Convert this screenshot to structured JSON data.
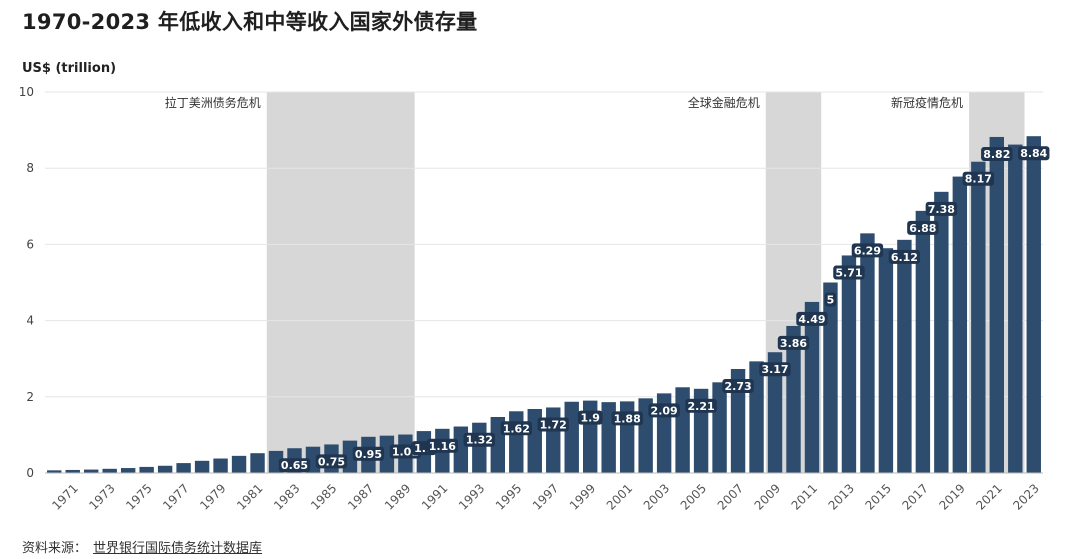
{
  "title": "1970-2023 年低收入和中等收入国家外债存量",
  "unit_label": "US$ (trillion)",
  "source": {
    "prefix": "资料来源：",
    "link_text": "世界银行国际债务统计数据库"
  },
  "colors": {
    "bar": "#2e4d6e",
    "band": "#d7d7d7",
    "label_bg": "#1f3550",
    "grid": "#e6e6e6"
  },
  "chart_data": {
    "type": "bar",
    "title": "1970-2023 年低收入和中等收入国家外债存量",
    "ylabel": "US$ (trillion)",
    "ylim": [
      0,
      10
    ],
    "yticks": [
      0,
      2,
      4,
      6,
      8,
      10
    ],
    "grid": true,
    "categories": [
      1970,
      1971,
      1972,
      1973,
      1974,
      1975,
      1976,
      1977,
      1978,
      1979,
      1980,
      1981,
      1982,
      1983,
      1984,
      1985,
      1986,
      1987,
      1988,
      1989,
      1990,
      1991,
      1992,
      1993,
      1994,
      1995,
      1996,
      1997,
      1998,
      1999,
      2000,
      2001,
      2002,
      2003,
      2004,
      2005,
      2006,
      2007,
      2008,
      2009,
      2010,
      2011,
      2012,
      2013,
      2014,
      2015,
      2016,
      2017,
      2018,
      2019,
      2020,
      2021,
      2022,
      2023
    ],
    "xtick_labels": [
      1971,
      1973,
      1975,
      1977,
      1979,
      1981,
      1983,
      1985,
      1987,
      1989,
      1991,
      1993,
      1995,
      1997,
      1999,
      2001,
      2003,
      2005,
      2007,
      2009,
      2011,
      2013,
      2015,
      2017,
      2019,
      2021,
      2023
    ],
    "values": [
      0.07,
      0.08,
      0.09,
      0.11,
      0.13,
      0.16,
      0.19,
      0.26,
      0.32,
      0.38,
      0.45,
      0.52,
      0.58,
      0.65,
      0.69,
      0.75,
      0.85,
      0.95,
      0.98,
      1.01,
      1.1,
      1.16,
      1.22,
      1.32,
      1.47,
      1.62,
      1.68,
      1.72,
      1.87,
      1.9,
      1.86,
      1.88,
      1.96,
      2.09,
      2.25,
      2.21,
      2.38,
      2.73,
      2.93,
      3.17,
      3.86,
      4.49,
      5.0,
      5.71,
      6.29,
      5.9,
      6.12,
      6.88,
      7.38,
      7.78,
      8.17,
      8.82,
      8.62,
      8.84
    ],
    "data_labels": [
      {
        "year": 1983,
        "text": "0.65"
      },
      {
        "year": 1985,
        "text": "0.75"
      },
      {
        "year": 1987,
        "text": "0.95"
      },
      {
        "year": 1989,
        "text": "1.01"
      },
      {
        "year": 1990,
        "text": "1.1"
      },
      {
        "year": 1991,
        "text": "1.16"
      },
      {
        "year": 1993,
        "text": "1.32"
      },
      {
        "year": 1995,
        "text": "1.62"
      },
      {
        "year": 1997,
        "text": "1.72"
      },
      {
        "year": 1999,
        "text": "1.9"
      },
      {
        "year": 2001,
        "text": "1.88"
      },
      {
        "year": 2003,
        "text": "2.09"
      },
      {
        "year": 2005,
        "text": "2.21"
      },
      {
        "year": 2007,
        "text": "2.73"
      },
      {
        "year": 2009,
        "text": "3.17"
      },
      {
        "year": 2010,
        "text": "3.86"
      },
      {
        "year": 2011,
        "text": "4.49"
      },
      {
        "year": 2012,
        "text": "5"
      },
      {
        "year": 2013,
        "text": "5.71"
      },
      {
        "year": 2014,
        "text": "6.29"
      },
      {
        "year": 2016,
        "text": "6.12"
      },
      {
        "year": 2017,
        "text": "6.88"
      },
      {
        "year": 2018,
        "text": "7.38"
      },
      {
        "year": 2020,
        "text": "8.17"
      },
      {
        "year": 2021,
        "text": "8.82"
      },
      {
        "year": 2023,
        "text": "8.84"
      }
    ],
    "annotations": [
      {
        "label": "拉丁美洲债务危机",
        "start_year": 1982,
        "end_year": 1989
      },
      {
        "label": "全球金融危机",
        "start_year": 2009,
        "end_year": 2011
      },
      {
        "label": "新冠疫情危机",
        "start_year": 2020,
        "end_year": 2022
      }
    ]
  }
}
